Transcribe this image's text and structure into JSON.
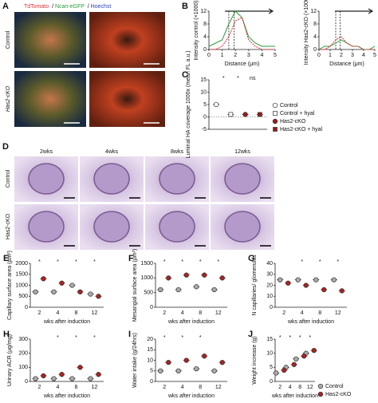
{
  "figure": {
    "panel_a": {
      "label": "A",
      "channels": [
        "TdTomato",
        "Ncan-eGFP",
        "Hoechst"
      ],
      "separator": "/",
      "rows": [
        "Control",
        "Has2-cKO"
      ]
    },
    "panel_d": {
      "label": "D",
      "columns": [
        "2wks",
        "4wks",
        "8wks",
        "12wks"
      ],
      "rows": [
        "Control",
        "Has2-cKO"
      ]
    }
  },
  "chart_data": [
    {
      "panel": "B",
      "type": "line",
      "ylabel": "Intensity control (×1000)",
      "xlabel": "Distance (μm)",
      "xlim": [
        0,
        5
      ],
      "xticks": [
        0,
        1,
        2,
        3,
        4,
        5
      ],
      "ylim": [
        0,
        12
      ],
      "yticks": [
        0,
        4,
        8,
        12
      ],
      "x": [
        0,
        0.5,
        1,
        1.5,
        2,
        2.5,
        3,
        3.5,
        4,
        4.5,
        5
      ],
      "series": [
        {
          "name": "Ncan-eGFP",
          "color": "#2a9d3a",
          "values": [
            1,
            2,
            3,
            8,
            12,
            10,
            4,
            2,
            1,
            1,
            1
          ]
        },
        {
          "name": "TdTomato",
          "color": "#d0303a",
          "values": [
            0,
            0,
            1,
            4,
            9,
            10,
            3,
            1,
            0,
            0,
            0
          ]
        }
      ]
    },
    {
      "type": "line",
      "ylabel": "Intensity Has2-cKO (×1000)",
      "xlabel": "Distance (μm)",
      "xlim": [
        0,
        5
      ],
      "xticks": [
        0,
        1,
        2,
        3,
        4,
        5
      ],
      "ylim": [
        0,
        12
      ],
      "yticks": [
        0,
        4,
        8,
        12
      ],
      "x": [
        0,
        0.5,
        1,
        1.5,
        2,
        2.5,
        3,
        3.5,
        4,
        4.5,
        5
      ],
      "series": [
        {
          "name": "Ncan-eGFP",
          "color": "#2a9d3a",
          "values": [
            0,
            1,
            1,
            2,
            3,
            2,
            1,
            1,
            0,
            0,
            1
          ]
        },
        {
          "name": "TdTomato",
          "color": "#d0303a",
          "values": [
            0,
            0,
            1,
            3,
            4,
            2,
            1,
            1,
            0,
            0,
            0
          ]
        }
      ]
    },
    {
      "panel": "C",
      "type": "dot",
      "ylabel": "Luminal HA coverage 1000x (mean FL a.u.)",
      "ylim": [
        -5,
        15
      ],
      "yticks": [
        -5,
        0,
        5,
        10,
        15
      ],
      "series": [
        {
          "name": "Control",
          "color": "#ffffff",
          "marker": "circle",
          "values": [
            5
          ]
        },
        {
          "name": "Control + hyal",
          "color": "#ffffff",
          "marker": "square",
          "values": [
            1
          ]
        },
        {
          "name": "Has2-cKO",
          "color": "#9b1b1b",
          "marker": "circle",
          "values": [
            1
          ]
        },
        {
          "name": "Has2-cKO + hyal",
          "color": "#9b1b1b",
          "marker": "square",
          "values": [
            1
          ]
        }
      ],
      "annotations": [
        {
          "text": "*",
          "at": 1
        },
        {
          "text": "*",
          "at": 2
        },
        {
          "text": "ns",
          "at": 3
        }
      ]
    },
    {
      "panel": "E",
      "type": "dot",
      "ylabel": "Capillary surface area (μm²)",
      "xlabel": "wks after induction",
      "categories": [
        "2",
        "4",
        "8",
        "12"
      ],
      "ylim": [
        0,
        2000
      ],
      "yticks": [
        0,
        500,
        1000,
        1500,
        2000
      ],
      "series": [
        {
          "name": "Control",
          "color": "#aaaaaa",
          "values": [
            700,
            700,
            1000,
            600
          ]
        },
        {
          "name": "Has2-cKO",
          "color": "#b02020",
          "values": [
            1300,
            1100,
            700,
            500
          ]
        }
      ],
      "annotations": [
        {
          "text": "*",
          "at": 0
        },
        {
          "text": "*",
          "at": 1
        },
        {
          "text": "*",
          "at": 2
        },
        {
          "text": "*",
          "at": 3
        }
      ]
    },
    {
      "panel": "F",
      "type": "dot",
      "ylabel": "Mesangial surface area (μm²)",
      "xlabel": "wks after induction",
      "categories": [
        "2",
        "4",
        "8",
        "12"
      ],
      "ylim": [
        0,
        1500
      ],
      "yticks": [
        0,
        500,
        1000,
        1500
      ],
      "series": [
        {
          "name": "Control",
          "color": "#aaaaaa",
          "values": [
            600,
            600,
            700,
            600
          ]
        },
        {
          "name": "Has2-cKO",
          "color": "#b02020",
          "values": [
            1000,
            1100,
            1100,
            1000
          ]
        }
      ],
      "annotations": [
        {
          "text": "*",
          "at": 0
        },
        {
          "text": "*",
          "at": 1
        },
        {
          "text": "*",
          "at": 2
        },
        {
          "text": "*",
          "at": 3
        }
      ]
    },
    {
      "panel": "G",
      "type": "dot",
      "ylabel": "N capillaries/ glomerulus",
      "xlabel": "wks after induction",
      "categories": [
        "2",
        "4",
        "8",
        "12"
      ],
      "ylim": [
        0,
        40
      ],
      "yticks": [
        0,
        10,
        20,
        30,
        40
      ],
      "series": [
        {
          "name": "Control",
          "color": "#aaaaaa",
          "values": [
            25,
            25,
            25,
            25
          ]
        },
        {
          "name": "Has2-cKO",
          "color": "#b02020",
          "values": [
            22,
            20,
            16,
            15
          ]
        }
      ],
      "annotations": [
        {
          "text": "*",
          "at": 1
        },
        {
          "text": "*",
          "at": 2
        },
        {
          "text": "*",
          "at": 3
        }
      ]
    },
    {
      "panel": "H",
      "type": "dot",
      "ylabel": "Urinary ACR (μg/mg)",
      "xlabel": "wks after induction",
      "categories": [
        "2",
        "4",
        "8",
        "12"
      ],
      "ylim": [
        0,
        300
      ],
      "yticks": [
        0,
        100,
        200,
        300
      ],
      "series": [
        {
          "name": "Control",
          "color": "#aaaaaa",
          "values": [
            20,
            20,
            20,
            20
          ]
        },
        {
          "name": "Has2-cKO",
          "color": "#b02020",
          "values": [
            40,
            50,
            100,
            50
          ]
        }
      ],
      "annotations": [
        {
          "text": "*",
          "at": 1
        },
        {
          "text": "*",
          "at": 2
        },
        {
          "text": "*",
          "at": 3
        }
      ]
    },
    {
      "panel": "I",
      "type": "dot",
      "ylabel": "Water intake (g/24hrs)",
      "xlabel": "wks after induction",
      "categories": [
        "2",
        "4",
        "8",
        "12"
      ],
      "ylim": [
        0,
        20
      ],
      "yticks": [
        0,
        5,
        10,
        15,
        20
      ],
      "series": [
        {
          "name": "Control",
          "color": "#aaaaaa",
          "values": [
            5,
            5,
            6,
            5
          ]
        },
        {
          "name": "Has2-cKO",
          "color": "#b02020",
          "values": [
            9,
            10,
            12,
            9
          ]
        }
      ],
      "annotations": [
        {
          "text": "*",
          "at": 0
        },
        {
          "text": "*",
          "at": 1
        },
        {
          "text": "*",
          "at": 2
        }
      ]
    },
    {
      "panel": "J",
      "type": "dot",
      "ylabel": "Weight increase (g)",
      "xlabel": "wks after induction",
      "categories": [
        "2",
        "4",
        "8",
        "12"
      ],
      "ylim": [
        0,
        15
      ],
      "yticks": [
        0,
        5,
        10,
        15
      ],
      "series": [
        {
          "name": "Control",
          "color": "#aaaaaa",
          "values": [
            3,
            5,
            8,
            10
          ]
        },
        {
          "name": "Has2-cKO",
          "color": "#b02020",
          "values": [
            4,
            6,
            9,
            11
          ]
        }
      ],
      "annotations": [
        {
          "text": "*",
          "at": 0
        },
        {
          "text": "*",
          "at": 1
        },
        {
          "text": "*",
          "at": 2
        },
        {
          "text": "*",
          "at": 3
        }
      ]
    }
  ]
}
